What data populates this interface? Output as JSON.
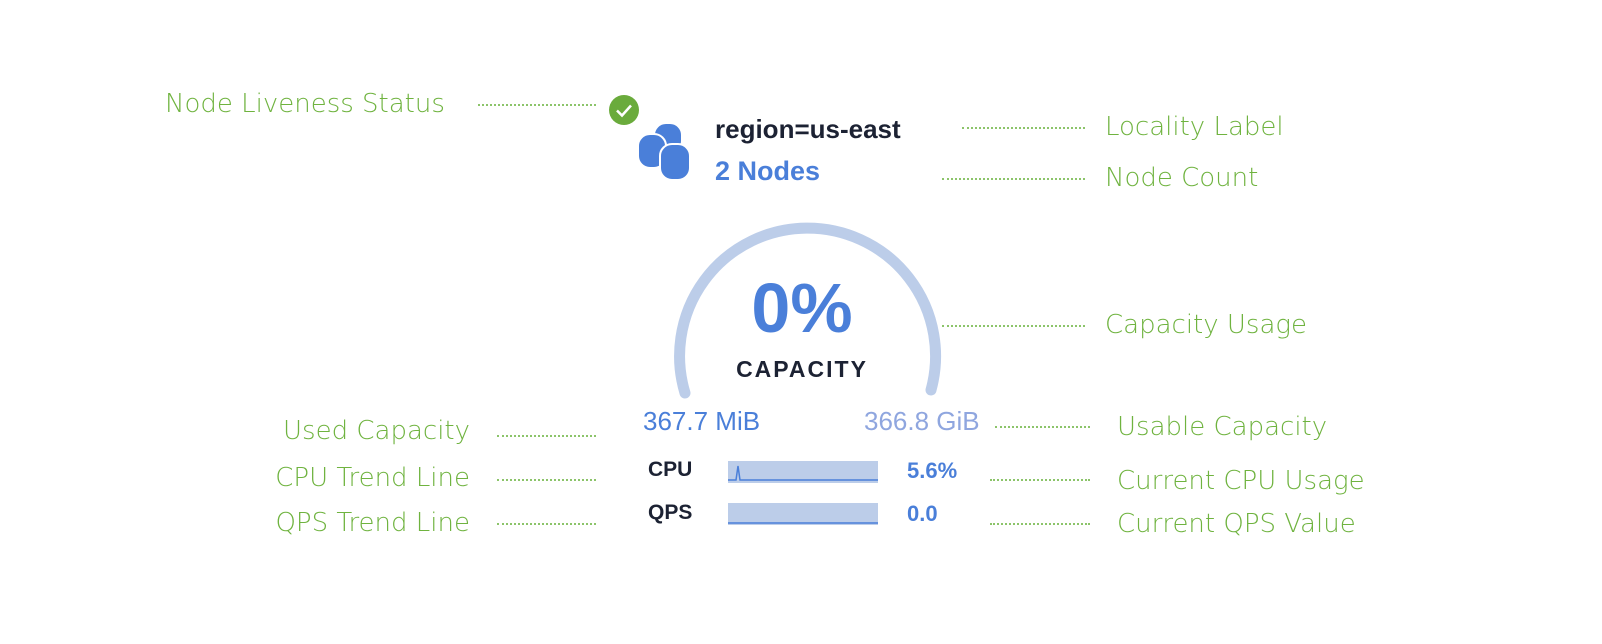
{
  "annotations": {
    "node_liveness_status": "Node Liveness Status",
    "locality_label": "Locality Label",
    "node_count": "Node Count",
    "capacity_usage": "Capacity Usage",
    "used_capacity": "Used Capacity",
    "usable_capacity": "Usable Capacity",
    "cpu_trend_line": "CPU Trend Line",
    "current_cpu_usage": "Current CPU Usage",
    "qps_trend_line": "QPS Trend Line",
    "current_qps_value": "Current QPS Value"
  },
  "node": {
    "status_icon": "check-circle-icon",
    "status_color": "#6aab3c",
    "db_icon": "database-stack-icon",
    "locality": "region=us-east",
    "node_count": "2 Nodes",
    "capacity_percent": "0%",
    "capacity_label": "CAPACITY",
    "capacity_fraction": 0,
    "used": "367.7 MiB",
    "usable": "366.8 GiB",
    "cpu_label": "CPU",
    "cpu_value": "5.6%",
    "qps_label": "QPS",
    "qps_value": "0.0"
  },
  "colors": {
    "annotation": "#6fb33f",
    "accent": "#4a7fd9",
    "gauge": "#bccde9"
  }
}
